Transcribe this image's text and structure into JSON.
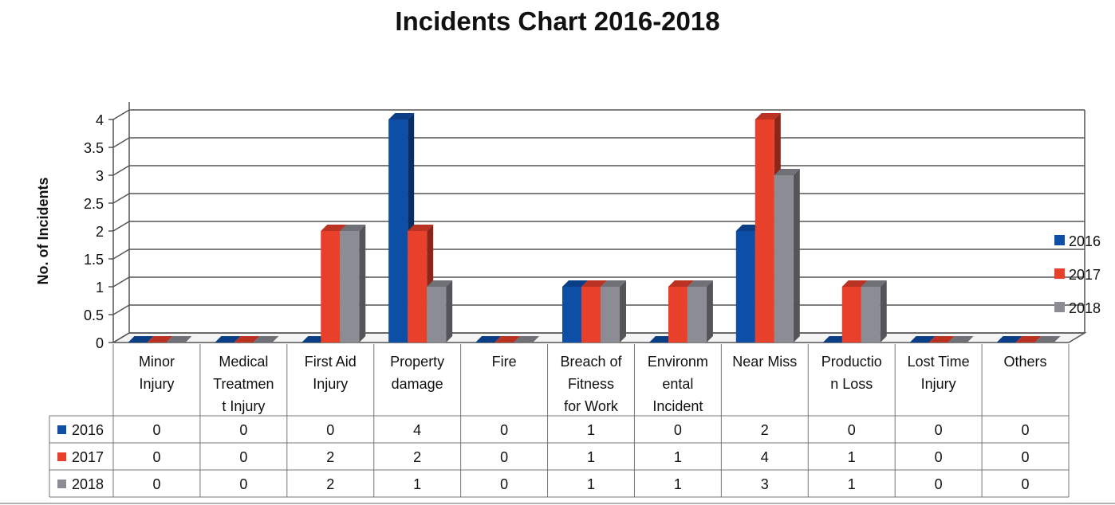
{
  "chart_data": {
    "type": "bar",
    "title": "Incidents Chart 2016-2018",
    "ylabel": "No. of Incidents",
    "xlabel": "",
    "ylim": [
      0,
      4
    ],
    "y_ticks": [
      "0",
      "0.5",
      "1",
      "1.5",
      "2",
      "2.5",
      "3",
      "3.5",
      "4"
    ],
    "y_tick_values": [
      0,
      0.5,
      1,
      1.5,
      2,
      2.5,
      3,
      3.5,
      4
    ],
    "grid": true,
    "bar_style": "3d",
    "legend_position": "right",
    "categories": [
      [
        "Minor",
        "Injury"
      ],
      [
        "Medical",
        "Treatmen",
        "t Injury"
      ],
      [
        "First Aid",
        "Injury"
      ],
      [
        "Property",
        "damage"
      ],
      [
        "Fire"
      ],
      [
        "Breach of",
        "Fitness",
        "for Work"
      ],
      [
        "Environm",
        "ental",
        "Incident"
      ],
      [
        "Near Miss"
      ],
      [
        "Productio",
        "n Loss"
      ],
      [
        "Lost Time",
        "Injury"
      ],
      [
        "Others"
      ]
    ],
    "series": [
      {
        "name": "2016",
        "color": "#0d4ea6",
        "values": [
          0,
          0,
          0,
          4,
          0,
          1,
          0,
          2,
          0,
          0,
          0
        ]
      },
      {
        "name": "2017",
        "color": "#e8402a",
        "values": [
          0,
          0,
          2,
          2,
          0,
          1,
          1,
          4,
          1,
          0,
          0
        ]
      },
      {
        "name": "2018",
        "color": "#8c8c95",
        "values": [
          0,
          0,
          2,
          1,
          0,
          1,
          1,
          3,
          1,
          0,
          0
        ]
      }
    ],
    "data_table": true
  }
}
